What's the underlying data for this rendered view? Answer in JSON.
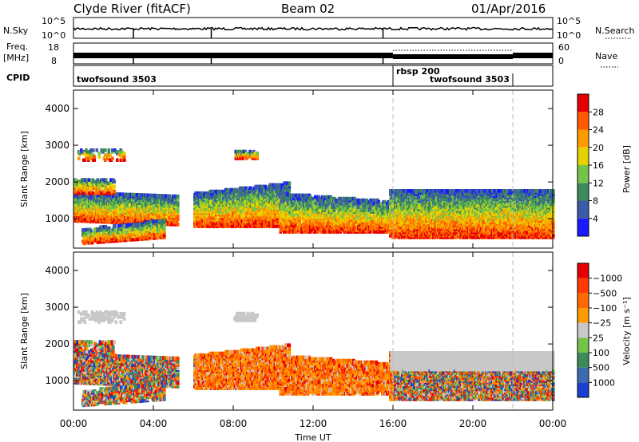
{
  "header": {
    "station": "Clyde River (fitACF)",
    "beam": "Beam 02",
    "date": "01/Apr/2016"
  },
  "status_panels": {
    "nsky_label": "N.Sky",
    "nsky_ticks": [
      "10^5",
      "10^0"
    ],
    "nsearch_label": "N.Search",
    "freq_label_1": "Freq.",
    "freq_label_2": "[MHz]",
    "freq_ticks": [
      "18",
      "8"
    ],
    "nave_ticks": [
      "60",
      "0"
    ],
    "nave_label": "Nave",
    "cpid_label": "CPID",
    "cpid_segments": [
      "twofsound 3503",
      "rbsp 200",
      "twofsound 3503"
    ]
  },
  "chart_data": [
    {
      "type": "heatmap",
      "title": "",
      "ylabel": "Slant Range [km]",
      "xlabel": "",
      "x_ticks": [
        "00:00",
        "04:00",
        "08:00",
        "12:00",
        "16:00",
        "20:00",
        "00:00"
      ],
      "y_ticks": [
        1000,
        2000,
        3000,
        4000
      ],
      "ylim": [
        200,
        4500
      ],
      "xlim_hours": [
        0,
        24
      ],
      "colorbar": {
        "label": "Power [dB]",
        "ticks": [
          4,
          8,
          12,
          16,
          20,
          24,
          28
        ],
        "colors": [
          "#1a1aff",
          "#3c5aa8",
          "#3d8a5a",
          "#74c44a",
          "#e6d200",
          "#ff9a00",
          "#ff5a00",
          "#e60000"
        ]
      }
    },
    {
      "type": "heatmap",
      "title": "",
      "ylabel": "Slant Range [km]",
      "xlabel": "Time UT",
      "x_ticks": [
        "00:00",
        "04:00",
        "08:00",
        "12:00",
        "16:00",
        "20:00",
        "00:00"
      ],
      "y_ticks": [
        1000,
        2000,
        3000,
        4000
      ],
      "ylim": [
        200,
        4500
      ],
      "xlim_hours": [
        0,
        24
      ],
      "colorbar": {
        "label": "Velocity [m s⁻¹]",
        "ticks": [
          "1000",
          "500",
          "100",
          "25",
          "−25",
          "−100",
          "−500",
          "−1000"
        ],
        "colors": [
          "#1a3fd0",
          "#3c6ab0",
          "#3d8a5a",
          "#74c44a",
          "#c8c8c8",
          "#ff9a00",
          "#ff6a00",
          "#ff3a00",
          "#e60000"
        ]
      }
    }
  ],
  "markers": {
    "mode_change_hours": [
      16,
      22
    ]
  },
  "colors": {
    "frame": "#000000",
    "dashed": "#bbbbbb"
  }
}
